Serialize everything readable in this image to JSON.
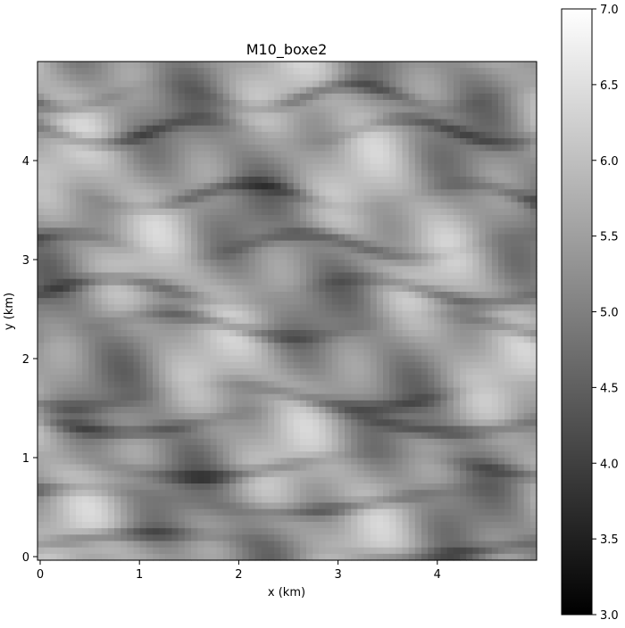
{
  "chart_data": {
    "type": "heatmap",
    "title": "M10_boxe2",
    "xlabel": "x (km)",
    "ylabel": "y (km)",
    "xlim": [
      0,
      5.0
    ],
    "ylim": [
      0,
      5.0
    ],
    "xticks": [
      0,
      1,
      2,
      3,
      4
    ],
    "yticks": [
      0,
      1,
      2,
      3,
      4
    ],
    "colormap": "gray",
    "colorbar": {
      "vmin": 3.0,
      "vmax": 7.0,
      "ticks": [
        "3.0",
        "3.5",
        "4.0",
        "4.5",
        "5.0",
        "5.5",
        "6.0",
        "6.5",
        "7.0"
      ],
      "low_color": "#000000",
      "high_color": "#ffffff"
    },
    "dark_channels_y_km": [
      0.15,
      0.6,
      0.95,
      1.4,
      1.65,
      2.35,
      2.7,
      3.15,
      3.65,
      4.3,
      4.65
    ],
    "typical_value_range": [
      4.3,
      6.6
    ]
  }
}
